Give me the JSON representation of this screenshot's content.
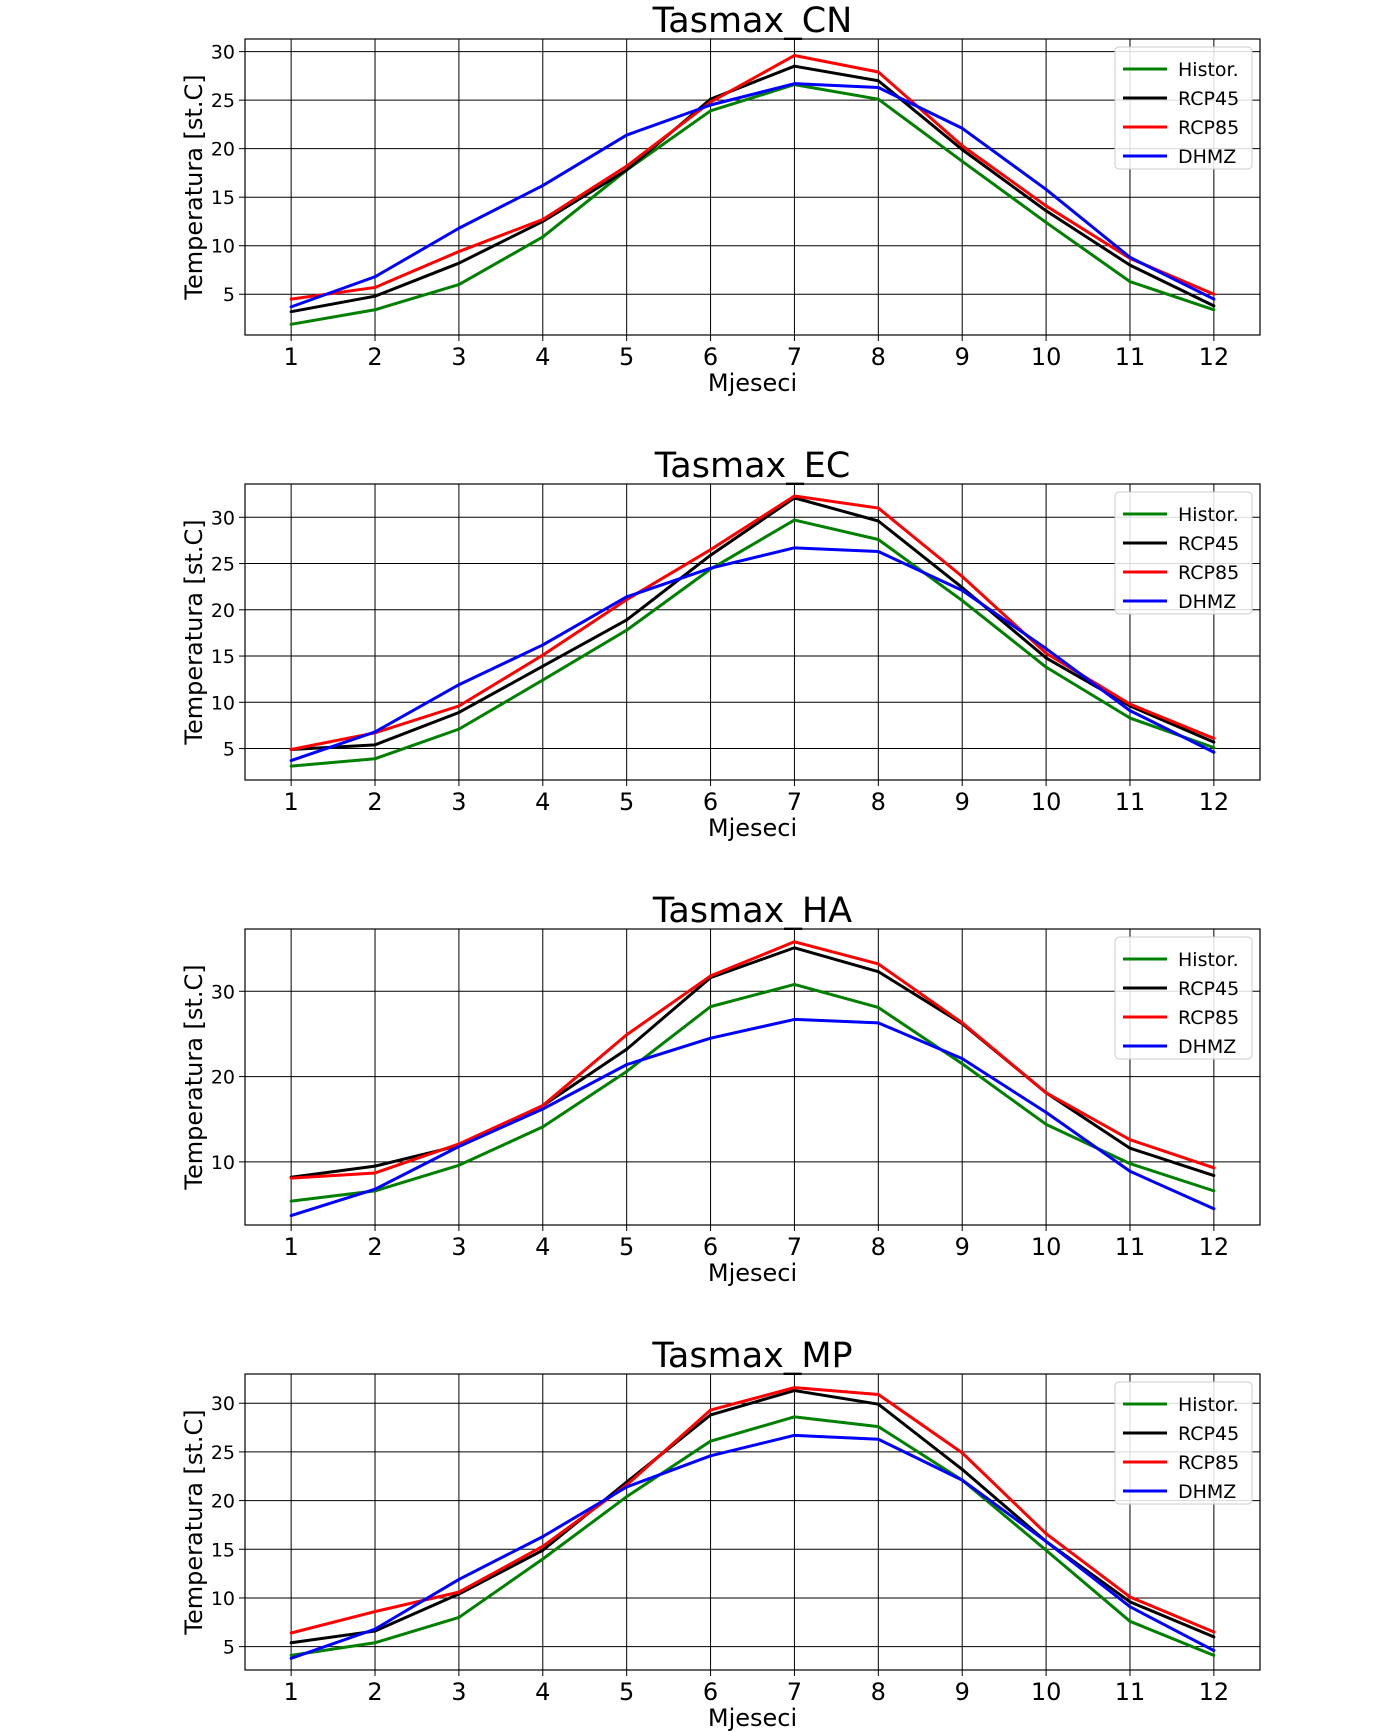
{
  "chart_data": [
    {
      "type": "line",
      "title": "Tasmax_CN",
      "xlabel": "Mjeseci",
      "ylabel": "Temperatura [st.C]",
      "x": [
        1,
        2,
        3,
        4,
        5,
        6,
        7,
        8,
        9,
        10,
        11,
        12
      ],
      "xlim": [
        0.45,
        12.55
      ],
      "ylim": [
        0.8,
        31.3
      ],
      "yticks": [
        5,
        10,
        15,
        20,
        25,
        30
      ],
      "grid": true,
      "legend_position": "top-right",
      "series": [
        {
          "name": "Histor.",
          "color": "#008000",
          "values": [
            1.9,
            3.4,
            6.0,
            10.9,
            17.8,
            23.9,
            26.6,
            25.1,
            18.7,
            12.4,
            6.3,
            3.4
          ]
        },
        {
          "name": "RCP45",
          "color": "#000000",
          "values": [
            3.2,
            4.8,
            8.2,
            12.5,
            17.8,
            25.1,
            28.5,
            27.0,
            19.9,
            13.6,
            8.0,
            3.8
          ]
        },
        {
          "name": "RCP85",
          "color": "#ff0000",
          "values": [
            4.5,
            5.7,
            9.4,
            12.7,
            18.2,
            24.8,
            29.6,
            27.9,
            20.3,
            14.1,
            8.7,
            5.0
          ]
        },
        {
          "name": "DHMZ",
          "color": "#0000ff",
          "values": [
            3.7,
            6.8,
            11.8,
            16.2,
            21.4,
            24.5,
            26.7,
            26.3,
            22.1,
            15.8,
            8.8,
            4.5
          ]
        }
      ]
    },
    {
      "type": "line",
      "title": "Tasmax_EC",
      "xlabel": "Mjeseci",
      "ylabel": "Temperatura [st.C]",
      "x": [
        1,
        2,
        3,
        4,
        5,
        6,
        7,
        8,
        9,
        10,
        11,
        12
      ],
      "xlim": [
        0.45,
        12.55
      ],
      "ylim": [
        1.6,
        33.6
      ],
      "yticks": [
        5,
        10,
        15,
        20,
        25,
        30
      ],
      "grid": true,
      "legend_position": "top-right",
      "series": [
        {
          "name": "Histor.",
          "color": "#008000",
          "values": [
            3.1,
            3.9,
            7.1,
            12.4,
            17.8,
            24.4,
            29.7,
            27.6,
            21.0,
            13.8,
            8.3,
            5.1
          ]
        },
        {
          "name": "RCP45",
          "color": "#000000",
          "values": [
            4.9,
            5.4,
            8.9,
            13.9,
            18.9,
            25.9,
            32.1,
            29.6,
            22.4,
            14.8,
            9.6,
            5.7
          ]
        },
        {
          "name": "RCP85",
          "color": "#ff0000",
          "values": [
            4.9,
            6.7,
            9.6,
            15.1,
            21.1,
            26.5,
            32.3,
            31.0,
            23.6,
            15.3,
            9.8,
            6.1
          ]
        },
        {
          "name": "DHMZ",
          "color": "#0000ff",
          "values": [
            3.7,
            6.8,
            11.9,
            16.2,
            21.4,
            24.5,
            26.7,
            26.3,
            22.1,
            15.8,
            9.1,
            4.6
          ]
        }
      ]
    },
    {
      "type": "line",
      "title": "Tasmax_HA",
      "xlabel": "Mjeseci",
      "ylabel": "Temperatura [st.C]",
      "x": [
        1,
        2,
        3,
        4,
        5,
        6,
        7,
        8,
        9,
        10,
        11,
        12
      ],
      "xlim": [
        0.45,
        12.55
      ],
      "ylim": [
        2.6,
        37.3
      ],
      "yticks": [
        10,
        20,
        30
      ],
      "grid": true,
      "legend_position": "top-right",
      "series": [
        {
          "name": "Histor.",
          "color": "#008000",
          "values": [
            5.4,
            6.6,
            9.6,
            14.1,
            20.6,
            28.2,
            30.8,
            28.1,
            21.5,
            14.4,
            9.8,
            6.6
          ]
        },
        {
          "name": "RCP45",
          "color": "#000000",
          "values": [
            8.2,
            9.5,
            11.9,
            16.6,
            23.2,
            31.6,
            35.1,
            32.3,
            26.2,
            18.1,
            11.6,
            8.4
          ]
        },
        {
          "name": "RCP85",
          "color": "#ff0000",
          "values": [
            8.1,
            8.7,
            12.1,
            16.6,
            24.9,
            31.8,
            35.8,
            33.2,
            26.3,
            18.1,
            12.6,
            9.3
          ]
        },
        {
          "name": "DHMZ",
          "color": "#0000ff",
          "values": [
            3.7,
            6.8,
            11.8,
            16.2,
            21.4,
            24.5,
            26.7,
            26.3,
            22.1,
            15.8,
            8.9,
            4.5
          ]
        }
      ]
    },
    {
      "type": "line",
      "title": "Tasmax_MP",
      "xlabel": "Mjeseci",
      "ylabel": "Temperatura [st.C]",
      "x": [
        1,
        2,
        3,
        4,
        5,
        6,
        7,
        8,
        9,
        10,
        11,
        12
      ],
      "xlim": [
        0.45,
        12.55
      ],
      "ylim": [
        2.6,
        33.0
      ],
      "yticks": [
        5,
        10,
        15,
        20,
        25,
        30
      ],
      "grid": true,
      "legend_position": "top-right",
      "series": [
        {
          "name": "Histor.",
          "color": "#008000",
          "values": [
            4.1,
            5.4,
            8.0,
            14.0,
            20.4,
            26.1,
            28.6,
            27.6,
            22.1,
            14.9,
            7.6,
            4.1
          ]
        },
        {
          "name": "RCP45",
          "color": "#000000",
          "values": [
            5.4,
            6.6,
            10.4,
            14.9,
            21.9,
            28.8,
            31.3,
            29.9,
            23.2,
            15.8,
            9.6,
            6.0
          ]
        },
        {
          "name": "RCP85",
          "color": "#ff0000",
          "values": [
            6.4,
            8.6,
            10.6,
            15.3,
            21.6,
            29.3,
            31.6,
            30.9,
            24.9,
            16.6,
            10.1,
            6.5
          ]
        },
        {
          "name": "DHMZ",
          "color": "#0000ff",
          "values": [
            3.8,
            6.8,
            11.9,
            16.3,
            21.4,
            24.6,
            26.7,
            26.3,
            22.1,
            15.8,
            9.1,
            4.6
          ]
        }
      ]
    }
  ]
}
